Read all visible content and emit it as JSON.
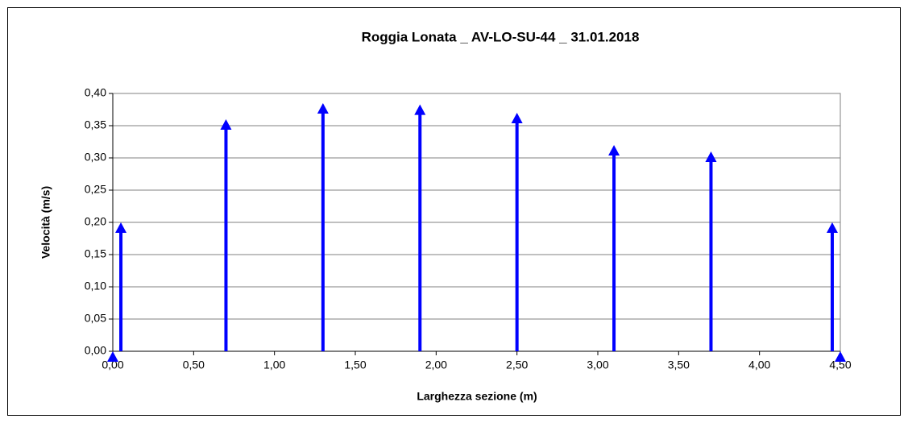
{
  "chart_data": {
    "type": "stem",
    "title": "Roggia Lonata _ AV-LO-SU-44 _ 31.01.2018",
    "xlabel": "Larghezza sezione (m)",
    "ylabel": "Velocità (m/s)",
    "x": [
      0,
      0.05,
      0.7,
      1.3,
      1.9,
      2.5,
      3.1,
      3.7,
      4.45,
      4.5
    ],
    "values": [
      0,
      0.2,
      0.36,
      0.385,
      0.383,
      0.37,
      0.32,
      0.31,
      0.2,
      0
    ],
    "color": "#0000ff",
    "xlim": [
      0,
      4.5
    ],
    "xticks": [
      {
        "value": 0,
        "label": "0,00"
      },
      {
        "value": 0.5,
        "label": "0,50"
      },
      {
        "value": 1,
        "label": "1,00"
      },
      {
        "value": 1.5,
        "label": "1,50"
      },
      {
        "value": 2,
        "label": "2,00"
      },
      {
        "value": 2.5,
        "label": "2,50"
      },
      {
        "value": 3,
        "label": "3,00"
      },
      {
        "value": 3.5,
        "label": "3,50"
      },
      {
        "value": 4,
        "label": "4,00"
      },
      {
        "value": 4.5,
        "label": "4,50"
      }
    ],
    "ylim": [
      0,
      0.4
    ],
    "yticks": [
      {
        "value": 0,
        "label": "0,00"
      },
      {
        "value": 0.05,
        "label": "0,05"
      },
      {
        "value": 0.1,
        "label": "0,10"
      },
      {
        "value": 0.15,
        "label": "0,15"
      },
      {
        "value": 0.2,
        "label": "0,20"
      },
      {
        "value": 0.25,
        "label": "0,25"
      },
      {
        "value": 0.3,
        "label": "0,30"
      },
      {
        "value": 0.35,
        "label": "0,35"
      },
      {
        "value": 0.4,
        "label": "0,40"
      }
    ],
    "grid": true
  }
}
